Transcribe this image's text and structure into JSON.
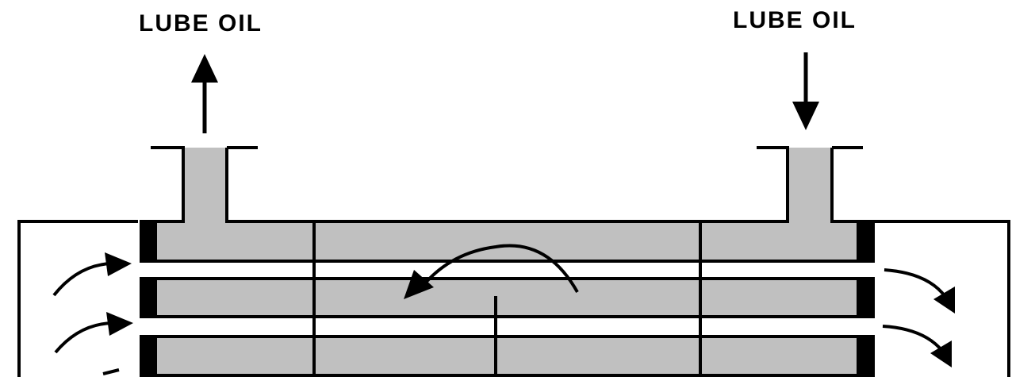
{
  "labels": {
    "outlet": "LUBE OIL",
    "inlet": "LUBE OIL"
  },
  "colors": {
    "oil_fill": "#c0c0c0",
    "line": "#000000",
    "background": "#ffffff"
  },
  "flows": {
    "outlet_direction": "up",
    "inlet_direction": "down",
    "internal_direction": "counterclockwise",
    "side_flow": "left-to-right"
  }
}
